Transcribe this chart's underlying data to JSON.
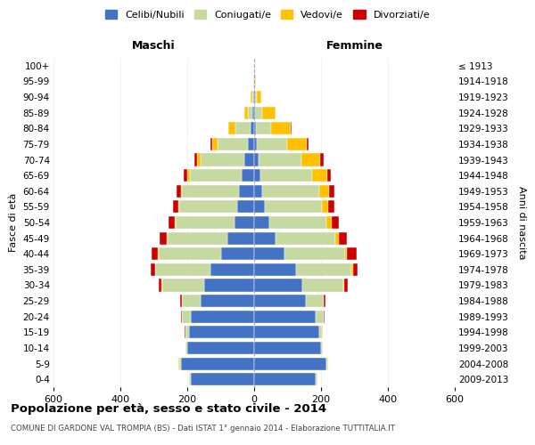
{
  "age_groups": [
    "0-4",
    "5-9",
    "10-14",
    "15-19",
    "20-24",
    "25-29",
    "30-34",
    "35-39",
    "40-44",
    "45-49",
    "50-54",
    "55-59",
    "60-64",
    "65-69",
    "70-74",
    "75-79",
    "80-84",
    "85-89",
    "90-94",
    "95-99",
    "100+"
  ],
  "birth_years": [
    "2009-2013",
    "2004-2008",
    "1999-2003",
    "1994-1998",
    "1989-1993",
    "1984-1988",
    "1979-1983",
    "1974-1978",
    "1969-1973",
    "1964-1968",
    "1959-1963",
    "1954-1958",
    "1949-1953",
    "1944-1948",
    "1939-1943",
    "1934-1938",
    "1929-1933",
    "1924-1928",
    "1919-1923",
    "1914-1918",
    "≤ 1913"
  ],
  "male_celibi": [
    190,
    220,
    200,
    195,
    190,
    160,
    150,
    130,
    100,
    80,
    60,
    50,
    45,
    38,
    30,
    20,
    12,
    5,
    2,
    1,
    0
  ],
  "male_coniugati": [
    5,
    5,
    5,
    10,
    25,
    55,
    125,
    165,
    185,
    180,
    175,
    175,
    170,
    155,
    130,
    90,
    45,
    15,
    3,
    1,
    0
  ],
  "male_vedovi": [
    0,
    1,
    1,
    1,
    2,
    2,
    2,
    2,
    2,
    2,
    2,
    3,
    5,
    8,
    10,
    15,
    20,
    10,
    5,
    1,
    0
  ],
  "male_divorziati": [
    0,
    0,
    0,
    2,
    3,
    5,
    8,
    12,
    20,
    22,
    18,
    15,
    12,
    10,
    10,
    5,
    1,
    0,
    0,
    0,
    0
  ],
  "female_celibi": [
    185,
    215,
    200,
    195,
    185,
    155,
    145,
    125,
    90,
    65,
    45,
    32,
    25,
    18,
    12,
    8,
    5,
    3,
    2,
    1,
    0
  ],
  "female_coniugati": [
    4,
    4,
    4,
    8,
    22,
    52,
    122,
    165,
    182,
    178,
    172,
    170,
    170,
    155,
    130,
    90,
    45,
    20,
    5,
    1,
    0
  ],
  "female_vedovi": [
    0,
    1,
    1,
    1,
    1,
    2,
    3,
    5,
    5,
    10,
    15,
    20,
    30,
    45,
    55,
    60,
    60,
    40,
    15,
    3,
    1
  ],
  "female_divorziati": [
    0,
    0,
    0,
    2,
    3,
    5,
    10,
    15,
    30,
    25,
    22,
    18,
    15,
    10,
    12,
    5,
    3,
    2,
    0,
    0,
    0
  ],
  "colors": {
    "celibi": "#4472c4",
    "coniugati": "#c5d9a0",
    "vedovi": "#ffc000",
    "divorziati": "#cc0000"
  },
  "title": "Popolazione per età, sesso e stato civile - 2014",
  "subtitle": "COMUNE DI GARDONE VAL TROMPIA (BS) - Dati ISTAT 1° gennaio 2014 - Elaborazione TUTTITALIA.IT",
  "xlabel_left": "Maschi",
  "xlabel_right": "Femmine",
  "ylabel_left": "Fasce di età",
  "ylabel_right": "Anni di nascita",
  "legend_labels": [
    "Celibi/Nubili",
    "Coniugati/e",
    "Vedovi/e",
    "Divorziati/e"
  ],
  "xlim": 600,
  "bg_color": "#ffffff",
  "grid_color": "#cccccc"
}
